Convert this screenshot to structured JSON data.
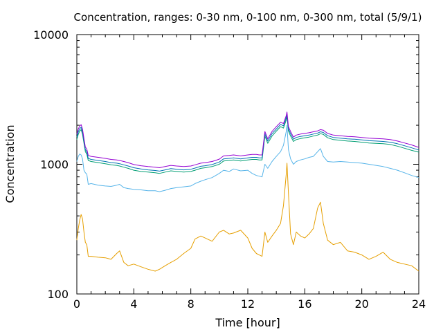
{
  "chart_data": {
    "type": "line",
    "title": "Concentration, ranges: 0-30 nm, 0-100 nm, 0-300 nm, total (5/9/1)",
    "xlabel": "Time [hour]",
    "ylabel": "Concentration",
    "xlim": [
      0,
      24
    ],
    "ylim": [
      100,
      10000
    ],
    "y_scale": "log",
    "grid": false,
    "x_ticks": [
      0,
      4,
      8,
      12,
      16,
      20,
      24
    ],
    "x_tick_labels": [
      "0",
      "4",
      "8",
      "12",
      "16",
      "20",
      "24"
    ],
    "y_ticks": [
      100,
      1000,
      10000
    ],
    "y_tick_labels": [
      "100",
      "1000",
      "10000"
    ],
    "gap": [
      0.7,
      13.0
    ],
    "series": [
      {
        "color": "#e69f00",
        "x": [
          0,
          0.1,
          0.2,
          0.3,
          0.4,
          0.5,
          0.6,
          0.7,
          0.8,
          1.0,
          1.5,
          2.0,
          2.4,
          2.8,
          3.0,
          3.3,
          3.6,
          4.0,
          4.5,
          5.0,
          5.5,
          5.8,
          6.2,
          6.6,
          7.0,
          7.5,
          8.0,
          8.3,
          8.7,
          9.0,
          9.5,
          10.0,
          10.3,
          10.7,
          11.0,
          11.5,
          12.0,
          12.3,
          12.6,
          12.8,
          13.0,
          13.2,
          13.4,
          13.7,
          14.0,
          14.3,
          14.5,
          14.7,
          14.75,
          14.85,
          15.0,
          15.2,
          15.4,
          15.7,
          16.0,
          16.3,
          16.6,
          16.9,
          17.1,
          17.3,
          17.6,
          18.0,
          18.5,
          19.0,
          19.5,
          20.0,
          20.5,
          21.0,
          21.5,
          22.0,
          22.5,
          23.0,
          23.5,
          24.0
        ],
        "y": [
          260,
          320,
          370,
          410,
          380,
          300,
          250,
          240,
          195,
          195,
          192,
          190,
          185,
          205,
          215,
          175,
          165,
          170,
          162,
          155,
          150,
          155,
          165,
          175,
          185,
          205,
          225,
          265,
          280,
          270,
          255,
          300,
          310,
          290,
          295,
          310,
          270,
          225,
          205,
          200,
          195,
          300,
          250,
          280,
          310,
          350,
          480,
          850,
          1020,
          600,
          290,
          240,
          300,
          280,
          270,
          290,
          320,
          460,
          510,
          350,
          260,
          240,
          250,
          215,
          210,
          200,
          185,
          195,
          210,
          185,
          175,
          170,
          165,
          150
        ]
      },
      {
        "color": "#56b4e9",
        "x": [
          0,
          0.1,
          0.2,
          0.3,
          0.4,
          0.5,
          0.6,
          0.7,
          0.8,
          1.0,
          1.5,
          2.0,
          2.4,
          2.8,
          3.0,
          3.3,
          3.6,
          4.0,
          4.5,
          5.0,
          5.5,
          5.8,
          6.2,
          6.6,
          7.0,
          7.5,
          8.0,
          8.3,
          8.7,
          9.0,
          9.5,
          10.0,
          10.3,
          10.7,
          11.0,
          11.5,
          12.0,
          12.3,
          12.6,
          12.8,
          13.0,
          13.2,
          13.4,
          13.7,
          14.0,
          14.3,
          14.5,
          14.7,
          14.75,
          14.85,
          15.0,
          15.2,
          15.4,
          15.7,
          16.0,
          16.3,
          16.6,
          16.9,
          17.1,
          17.3,
          17.6,
          18.0,
          18.5,
          19.0,
          19.5,
          20.0,
          20.5,
          21.0,
          21.5,
          22.0,
          22.5,
          23.0,
          23.5,
          24.0
        ],
        "y": [
          1050,
          1150,
          1200,
          1180,
          1100,
          900,
          860,
          840,
          700,
          710,
          690,
          680,
          675,
          690,
          700,
          660,
          650,
          640,
          635,
          625,
          625,
          615,
          630,
          650,
          660,
          670,
          680,
          710,
          740,
          760,
          790,
          850,
          900,
          880,
          920,
          890,
          900,
          850,
          820,
          810,
          800,
          1000,
          930,
          1050,
          1150,
          1250,
          1400,
          1800,
          2000,
          1300,
          1100,
          1000,
          1050,
          1080,
          1100,
          1130,
          1150,
          1250,
          1320,
          1150,
          1050,
          1040,
          1050,
          1040,
          1030,
          1020,
          1000,
          980,
          960,
          930,
          900,
          860,
          820,
          790
        ]
      },
      {
        "color": "#009e73",
        "x": [
          0,
          0.1,
          0.2,
          0.3,
          0.4,
          0.5,
          0.6,
          0.7,
          0.8,
          1.0,
          1.5,
          2.0,
          2.4,
          2.8,
          3.0,
          3.3,
          3.6,
          4.0,
          4.5,
          5.0,
          5.5,
          5.8,
          6.2,
          6.6,
          7.0,
          7.5,
          8.0,
          8.3,
          8.7,
          9.0,
          9.5,
          10.0,
          10.3,
          10.7,
          11.0,
          11.5,
          12.0,
          12.3,
          12.6,
          12.8,
          13.0,
          13.2,
          13.4,
          13.7,
          14.0,
          14.3,
          14.5,
          14.7,
          14.75,
          14.85,
          15.0,
          15.2,
          15.4,
          15.7,
          16.0,
          16.3,
          16.6,
          16.9,
          17.1,
          17.3,
          17.6,
          18.0,
          18.5,
          19.0,
          19.5,
          20.0,
          20.5,
          21.0,
          21.5,
          22.0,
          22.5,
          23.0,
          23.5,
          24.0
        ],
        "y": [
          1550,
          1700,
          1800,
          1850,
          1700,
          1450,
          1250,
          1200,
          1070,
          1050,
          1030,
          1010,
          990,
          980,
          970,
          950,
          930,
          900,
          880,
          870,
          860,
          850,
          870,
          890,
          880,
          870,
          880,
          900,
          930,
          940,
          960,
          1000,
          1060,
          1070,
          1080,
          1060,
          1080,
          1090,
          1090,
          1080,
          1080,
          1650,
          1450,
          1650,
          1800,
          1950,
          1900,
          2200,
          2350,
          1800,
          1650,
          1500,
          1550,
          1580,
          1600,
          1620,
          1650,
          1680,
          1720,
          1700,
          1600,
          1550,
          1530,
          1510,
          1500,
          1480,
          1460,
          1450,
          1440,
          1420,
          1380,
          1330,
          1280,
          1240
        ]
      },
      {
        "color": "#0072b2",
        "x": [
          0,
          0.1,
          0.2,
          0.3,
          0.4,
          0.5,
          0.6,
          0.7,
          0.8,
          1.0,
          1.5,
          2.0,
          2.4,
          2.8,
          3.0,
          3.3,
          3.6,
          4.0,
          4.5,
          5.0,
          5.5,
          5.8,
          6.2,
          6.6,
          7.0,
          7.5,
          8.0,
          8.3,
          8.7,
          9.0,
          9.5,
          10.0,
          10.3,
          10.7,
          11.0,
          11.5,
          12.0,
          12.3,
          12.6,
          12.8,
          13.0,
          13.2,
          13.4,
          13.7,
          14.0,
          14.3,
          14.5,
          14.7,
          14.75,
          14.85,
          15.0,
          15.2,
          15.4,
          15.7,
          16.0,
          16.3,
          16.6,
          16.9,
          17.1,
          17.3,
          17.6,
          18.0,
          18.5,
          19.0,
          19.5,
          20.0,
          20.5,
          21.0,
          21.5,
          22.0,
          22.5,
          23.0,
          23.5,
          24.0
        ],
        "y": [
          1620,
          1780,
          1880,
          1930,
          1780,
          1510,
          1300,
          1250,
          1110,
          1090,
          1070,
          1050,
          1030,
          1020,
          1010,
          990,
          970,
          940,
          920,
          905,
          895,
          885,
          905,
          925,
          915,
          905,
          915,
          935,
          965,
          975,
          995,
          1040,
          1100,
          1110,
          1120,
          1100,
          1120,
          1130,
          1130,
          1120,
          1120,
          1720,
          1510,
          1720,
          1870,
          2030,
          1980,
          2290,
          2440,
          1870,
          1720,
          1560,
          1610,
          1640,
          1660,
          1680,
          1710,
          1740,
          1780,
          1760,
          1660,
          1610,
          1590,
          1570,
          1560,
          1540,
          1520,
          1510,
          1500,
          1480,
          1440,
          1390,
          1340,
          1290
        ]
      },
      {
        "color": "#9400d3",
        "x": [
          0,
          0.1,
          0.2,
          0.3,
          0.4,
          0.5,
          0.6,
          0.7,
          0.8,
          1.0,
          1.5,
          2.0,
          2.4,
          2.8,
          3.0,
          3.3,
          3.6,
          4.0,
          4.5,
          5.0,
          5.5,
          5.8,
          6.2,
          6.6,
          7.0,
          7.5,
          8.0,
          8.3,
          8.7,
          9.0,
          9.5,
          10.0,
          10.3,
          10.7,
          11.0,
          11.5,
          12.0,
          12.3,
          12.6,
          12.8,
          13.0,
          13.2,
          13.4,
          13.7,
          14.0,
          14.3,
          14.5,
          14.7,
          14.75,
          14.85,
          15.0,
          15.2,
          15.4,
          15.7,
          16.0,
          16.3,
          16.6,
          16.9,
          17.1,
          17.3,
          17.6,
          18.0,
          18.5,
          19.0,
          19.5,
          20.0,
          20.5,
          21.0,
          21.5,
          22.0,
          22.5,
          23.0,
          23.5,
          24.0
        ],
        "y": [
          1700,
          1870,
          1970,
          2020,
          1870,
          1580,
          1360,
          1310,
          1170,
          1150,
          1130,
          1110,
          1090,
          1080,
          1070,
          1050,
          1030,
          995,
          975,
          960,
          950,
          940,
          960,
          980,
          970,
          960,
          970,
          990,
          1020,
          1030,
          1050,
          1095,
          1160,
          1170,
          1180,
          1160,
          1180,
          1190,
          1190,
          1180,
          1180,
          1790,
          1570,
          1790,
          1950,
          2110,
          2060,
          2380,
          2530,
          1950,
          1790,
          1620,
          1680,
          1710,
          1730,
          1750,
          1780,
          1810,
          1850,
          1830,
          1730,
          1680,
          1660,
          1640,
          1630,
          1610,
          1590,
          1580,
          1570,
          1550,
          1510,
          1460,
          1410,
          1350
        ]
      }
    ]
  }
}
